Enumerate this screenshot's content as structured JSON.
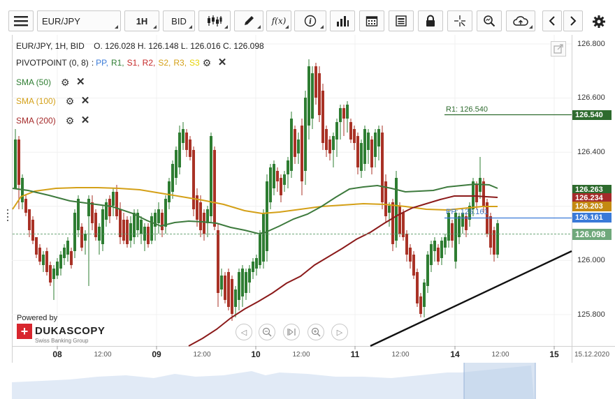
{
  "toolbar": {
    "symbol": "EUR/JPY",
    "timeframe": "1H",
    "side": "BID",
    "function_label": "f(x)",
    "info_label": "i"
  },
  "header": {
    "ohlc_line": "EUR/JPY, 1H, BID    O. 126.028 H. 126.148 L. 126.016 C. 126.098"
  },
  "pivot": {
    "name": "PIVOTPOINT (0, 8)",
    "sep": ":",
    "pp": "PP,",
    "r1": "R1,",
    "s1": "S1,",
    "r2": "R2,",
    "s2": "S2,",
    "r3": "R3,",
    "s3": "S3",
    "colors": {
      "pp": "#3a7ad8",
      "r1": "#2e7d32",
      "s1": "#c62828",
      "r2": "#c62828",
      "s2": "#d4a017",
      "r3": "#d4a017",
      "s3": "#e6d200"
    }
  },
  "indicators": [
    {
      "label": "SMA (50)",
      "color": "#2e7d32"
    },
    {
      "label": "SMA (100)",
      "color": "#d4a017"
    },
    {
      "label": "SMA (200)",
      "color": "#a52a2a"
    }
  ],
  "price_axis": {
    "labels": [
      "126.800",
      "126.600",
      "126.400",
      "126.000",
      "125.800"
    ]
  },
  "price_tags": [
    {
      "value": "126.540",
      "color": "#2e6b2e"
    },
    {
      "value": "126.263",
      "color": "#2e6b2e"
    },
    {
      "value": "126.234",
      "color": "#a52a2a"
    },
    {
      "value": "126.203",
      "color": "#c48a12"
    },
    {
      "value": "126.161",
      "color": "#3a7ad8"
    },
    {
      "value": "126.098",
      "color": "#6fa87b"
    }
  ],
  "level_labels": {
    "r1": "R1: 126.540",
    "pp": "PP: 126.161"
  },
  "time_axis": {
    "labels": [
      "08",
      "12:00",
      "09",
      "12:00",
      "10",
      "12:00",
      "11",
      "12:00",
      "14",
      "12:00",
      "15",
      "15.12.2020"
    ]
  },
  "logo": {
    "powered": "Powered by",
    "name": "DUKASCOPY",
    "sub": "Swiss Banking Group"
  },
  "colors": {
    "bull": "#2e7d32",
    "bear": "#a93226",
    "sma50": "#3d7a3d",
    "sma100": "#d4a017",
    "sma200": "#8b1a1a",
    "trendline": "#111111",
    "r1_line": "#2e6b2e",
    "pp_line": "#3a7ad8",
    "last_price_line": "#6fa87b",
    "navigator_fill": "#c9d9ee"
  }
}
